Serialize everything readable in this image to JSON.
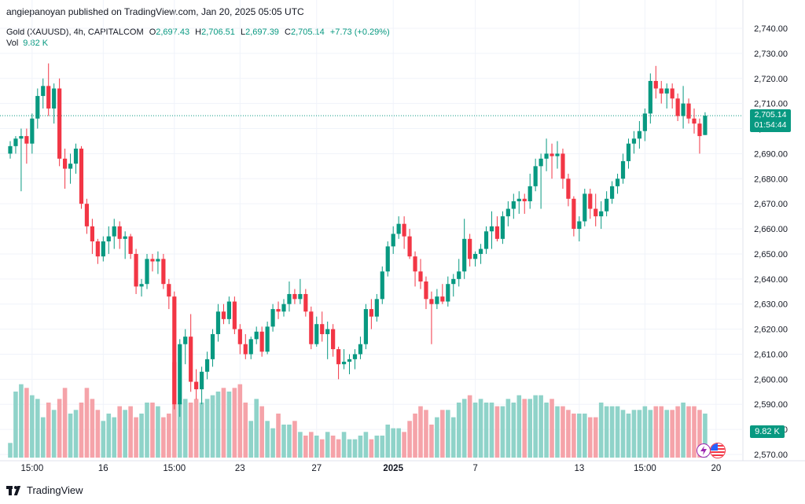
{
  "header": {
    "published": "angiepanoyan published on TradingView.com, Jan 20, 2025 05:05 UTC"
  },
  "legend": {
    "symbol": "Gold (XAUUSD), 4h, CAPITALCOM",
    "o_label": "O",
    "o_value": "2,697.43",
    "h_label": "H",
    "h_value": "2,706.51",
    "l_label": "L",
    "l_value": "2,697.39",
    "c_label": "C",
    "c_value": "2,705.14",
    "change": "+7.73 (+0.29%)",
    "vol_label": "Vol",
    "vol_value": "9.82 K"
  },
  "price_tag": {
    "price": "2,705.14",
    "countdown": "01:54:44"
  },
  "vol_tag": "9.82 K",
  "footer": {
    "brand": "TradingView"
  },
  "colors": {
    "up": "#089981",
    "down": "#f23645",
    "vol_up": "#8fd3c9",
    "vol_down": "#f5a3a9",
    "grid": "#f0f3fa"
  },
  "chart_data": {
    "type": "candlestick",
    "title": "Gold (XAUUSD), 4h, CAPITALCOM",
    "ylim": [
      2565,
      2745
    ],
    "y_ticks": [
      "2,740.00",
      "2,730.00",
      "2,720.00",
      "2,710.00",
      "2,700.00",
      "2,690.00",
      "2,680.00",
      "2,670.00",
      "2,660.00",
      "2,650.00",
      "2,640.00",
      "2,630.00",
      "2,620.00",
      "2,610.00",
      "2,600.00",
      "2,590.00",
      "2,580.00",
      "2,570.00"
    ],
    "x_ticks": [
      {
        "label": "15:00",
        "index": 4
      },
      {
        "label": "16",
        "index": 17
      },
      {
        "label": "15:00",
        "index": 30
      },
      {
        "label": "23",
        "index": 42
      },
      {
        "label": "27",
        "index": 56
      },
      {
        "label": "2025",
        "index": 70
      },
      {
        "label": "7",
        "index": 85
      },
      {
        "label": "13",
        "index": 104
      },
      {
        "label": "15:00",
        "index": 116
      },
      {
        "label": "20",
        "index": 129
      }
    ],
    "last_close": 2705.14,
    "series": [
      {
        "o": 2690,
        "h": 2695,
        "l": 2688,
        "c": 2693
      },
      {
        "o": 2693,
        "h": 2697,
        "l": 2690,
        "c": 2696
      },
      {
        "o": 2696,
        "h": 2700,
        "l": 2675,
        "c": 2697
      },
      {
        "o": 2697,
        "h": 2700,
        "l": 2686,
        "c": 2694
      },
      {
        "o": 2694,
        "h": 2706,
        "l": 2690,
        "c": 2704
      },
      {
        "o": 2704,
        "h": 2716,
        "l": 2700,
        "c": 2713
      },
      {
        "o": 2713,
        "h": 2720,
        "l": 2708,
        "c": 2717
      },
      {
        "o": 2717,
        "h": 2726,
        "l": 2705,
        "c": 2708
      },
      {
        "o": 2708,
        "h": 2718,
        "l": 2702,
        "c": 2716
      },
      {
        "o": 2716,
        "h": 2720,
        "l": 2685,
        "c": 2688
      },
      {
        "o": 2688,
        "h": 2692,
        "l": 2676,
        "c": 2684
      },
      {
        "o": 2684,
        "h": 2690,
        "l": 2678,
        "c": 2686
      },
      {
        "o": 2686,
        "h": 2694,
        "l": 2682,
        "c": 2692
      },
      {
        "o": 2692,
        "h": 2693,
        "l": 2668,
        "c": 2670
      },
      {
        "o": 2670,
        "h": 2672,
        "l": 2658,
        "c": 2661
      },
      {
        "o": 2661,
        "h": 2664,
        "l": 2650,
        "c": 2655
      },
      {
        "o": 2655,
        "h": 2656,
        "l": 2646,
        "c": 2649
      },
      {
        "o": 2649,
        "h": 2657,
        "l": 2647,
        "c": 2655
      },
      {
        "o": 2655,
        "h": 2661,
        "l": 2650,
        "c": 2657
      },
      {
        "o": 2657,
        "h": 2664,
        "l": 2652,
        "c": 2661
      },
      {
        "o": 2661,
        "h": 2663,
        "l": 2652,
        "c": 2656
      },
      {
        "o": 2656,
        "h": 2659,
        "l": 2648,
        "c": 2657
      },
      {
        "o": 2657,
        "h": 2658,
        "l": 2648,
        "c": 2650
      },
      {
        "o": 2650,
        "h": 2652,
        "l": 2634,
        "c": 2637
      },
      {
        "o": 2637,
        "h": 2640,
        "l": 2633,
        "c": 2638
      },
      {
        "o": 2638,
        "h": 2650,
        "l": 2636,
        "c": 2648
      },
      {
        "o": 2648,
        "h": 2650,
        "l": 2643,
        "c": 2647
      },
      {
        "o": 2647,
        "h": 2651,
        "l": 2642,
        "c": 2648
      },
      {
        "o": 2648,
        "h": 2650,
        "l": 2636,
        "c": 2638
      },
      {
        "o": 2638,
        "h": 2640,
        "l": 2628,
        "c": 2633
      },
      {
        "o": 2633,
        "h": 2635,
        "l": 2588,
        "c": 2590
      },
      {
        "o": 2590,
        "h": 2616,
        "l": 2585,
        "c": 2614
      },
      {
        "o": 2614,
        "h": 2620,
        "l": 2606,
        "c": 2617
      },
      {
        "o": 2617,
        "h": 2626,
        "l": 2595,
        "c": 2599
      },
      {
        "o": 2599,
        "h": 2604,
        "l": 2592,
        "c": 2596
      },
      {
        "o": 2596,
        "h": 2605,
        "l": 2590,
        "c": 2603
      },
      {
        "o": 2603,
        "h": 2611,
        "l": 2600,
        "c": 2608
      },
      {
        "o": 2608,
        "h": 2620,
        "l": 2605,
        "c": 2618
      },
      {
        "o": 2618,
        "h": 2630,
        "l": 2615,
        "c": 2627
      },
      {
        "o": 2627,
        "h": 2630,
        "l": 2622,
        "c": 2624
      },
      {
        "o": 2624,
        "h": 2633,
        "l": 2622,
        "c": 2631
      },
      {
        "o": 2631,
        "h": 2633,
        "l": 2618,
        "c": 2620
      },
      {
        "o": 2620,
        "h": 2622,
        "l": 2610,
        "c": 2614
      },
      {
        "o": 2614,
        "h": 2618,
        "l": 2608,
        "c": 2610
      },
      {
        "o": 2610,
        "h": 2617,
        "l": 2608,
        "c": 2616
      },
      {
        "o": 2616,
        "h": 2621,
        "l": 2614,
        "c": 2619
      },
      {
        "o": 2619,
        "h": 2621,
        "l": 2609,
        "c": 2611
      },
      {
        "o": 2611,
        "h": 2623,
        "l": 2610,
        "c": 2621
      },
      {
        "o": 2621,
        "h": 2630,
        "l": 2619,
        "c": 2628
      },
      {
        "o": 2628,
        "h": 2631,
        "l": 2624,
        "c": 2627
      },
      {
        "o": 2627,
        "h": 2632,
        "l": 2625,
        "c": 2630
      },
      {
        "o": 2630,
        "h": 2639,
        "l": 2627,
        "c": 2634
      },
      {
        "o": 2634,
        "h": 2636,
        "l": 2630,
        "c": 2632
      },
      {
        "o": 2632,
        "h": 2640,
        "l": 2630,
        "c": 2634
      },
      {
        "o": 2634,
        "h": 2636,
        "l": 2625,
        "c": 2627
      },
      {
        "o": 2627,
        "h": 2629,
        "l": 2612,
        "c": 2614
      },
      {
        "o": 2614,
        "h": 2625,
        "l": 2613,
        "c": 2622
      },
      {
        "o": 2622,
        "h": 2627,
        "l": 2615,
        "c": 2618
      },
      {
        "o": 2618,
        "h": 2623,
        "l": 2608,
        "c": 2620
      },
      {
        "o": 2620,
        "h": 2622,
        "l": 2609,
        "c": 2612
      },
      {
        "o": 2612,
        "h": 2613,
        "l": 2600,
        "c": 2606
      },
      {
        "o": 2606,
        "h": 2612,
        "l": 2604,
        "c": 2607
      },
      {
        "o": 2607,
        "h": 2610,
        "l": 2602,
        "c": 2608
      },
      {
        "o": 2608,
        "h": 2612,
        "l": 2604,
        "c": 2610
      },
      {
        "o": 2610,
        "h": 2617,
        "l": 2608,
        "c": 2614
      },
      {
        "o": 2614,
        "h": 2630,
        "l": 2612,
        "c": 2628
      },
      {
        "o": 2628,
        "h": 2632,
        "l": 2620,
        "c": 2625
      },
      {
        "o": 2625,
        "h": 2634,
        "l": 2623,
        "c": 2632
      },
      {
        "o": 2632,
        "h": 2645,
        "l": 2630,
        "c": 2643
      },
      {
        "o": 2643,
        "h": 2655,
        "l": 2641,
        "c": 2653
      },
      {
        "o": 2653,
        "h": 2661,
        "l": 2650,
        "c": 2658
      },
      {
        "o": 2658,
        "h": 2665,
        "l": 2656,
        "c": 2662
      },
      {
        "o": 2662,
        "h": 2665,
        "l": 2652,
        "c": 2657
      },
      {
        "o": 2657,
        "h": 2660,
        "l": 2648,
        "c": 2649
      },
      {
        "o": 2649,
        "h": 2651,
        "l": 2637,
        "c": 2643
      },
      {
        "o": 2643,
        "h": 2648,
        "l": 2636,
        "c": 2639
      },
      {
        "o": 2639,
        "h": 2641,
        "l": 2628,
        "c": 2632
      },
      {
        "o": 2632,
        "h": 2635,
        "l": 2614,
        "c": 2630
      },
      {
        "o": 2630,
        "h": 2636,
        "l": 2628,
        "c": 2633
      },
      {
        "o": 2633,
        "h": 2638,
        "l": 2630,
        "c": 2631
      },
      {
        "o": 2631,
        "h": 2641,
        "l": 2629,
        "c": 2638
      },
      {
        "o": 2638,
        "h": 2642,
        "l": 2633,
        "c": 2640
      },
      {
        "o": 2640,
        "h": 2648,
        "l": 2637,
        "c": 2643
      },
      {
        "o": 2643,
        "h": 2664,
        "l": 2640,
        "c": 2656
      },
      {
        "o": 2656,
        "h": 2658,
        "l": 2645,
        "c": 2648
      },
      {
        "o": 2648,
        "h": 2651,
        "l": 2645,
        "c": 2650
      },
      {
        "o": 2650,
        "h": 2654,
        "l": 2646,
        "c": 2652
      },
      {
        "o": 2652,
        "h": 2661,
        "l": 2650,
        "c": 2659
      },
      {
        "o": 2659,
        "h": 2667,
        "l": 2652,
        "c": 2661
      },
      {
        "o": 2661,
        "h": 2665,
        "l": 2655,
        "c": 2656
      },
      {
        "o": 2656,
        "h": 2667,
        "l": 2654,
        "c": 2665
      },
      {
        "o": 2665,
        "h": 2671,
        "l": 2661,
        "c": 2668
      },
      {
        "o": 2668,
        "h": 2674,
        "l": 2664,
        "c": 2671
      },
      {
        "o": 2671,
        "h": 2675,
        "l": 2666,
        "c": 2672
      },
      {
        "o": 2672,
        "h": 2674,
        "l": 2666,
        "c": 2671
      },
      {
        "o": 2671,
        "h": 2682,
        "l": 2668,
        "c": 2677
      },
      {
        "o": 2677,
        "h": 2688,
        "l": 2675,
        "c": 2685
      },
      {
        "o": 2685,
        "h": 2690,
        "l": 2668,
        "c": 2688
      },
      {
        "o": 2688,
        "h": 2696,
        "l": 2683,
        "c": 2690
      },
      {
        "o": 2690,
        "h": 2694,
        "l": 2680,
        "c": 2689
      },
      {
        "o": 2689,
        "h": 2695,
        "l": 2684,
        "c": 2690
      },
      {
        "o": 2690,
        "h": 2692,
        "l": 2676,
        "c": 2680
      },
      {
        "o": 2680,
        "h": 2682,
        "l": 2669,
        "c": 2672
      },
      {
        "o": 2672,
        "h": 2673,
        "l": 2657,
        "c": 2660
      },
      {
        "o": 2660,
        "h": 2665,
        "l": 2655,
        "c": 2663
      },
      {
        "o": 2663,
        "h": 2676,
        "l": 2661,
        "c": 2674
      },
      {
        "o": 2674,
        "h": 2676,
        "l": 2664,
        "c": 2668
      },
      {
        "o": 2668,
        "h": 2674,
        "l": 2661,
        "c": 2665
      },
      {
        "o": 2665,
        "h": 2671,
        "l": 2660,
        "c": 2667
      },
      {
        "o": 2667,
        "h": 2675,
        "l": 2665,
        "c": 2672
      },
      {
        "o": 2672,
        "h": 2679,
        "l": 2670,
        "c": 2677
      },
      {
        "o": 2677,
        "h": 2682,
        "l": 2674,
        "c": 2680
      },
      {
        "o": 2680,
        "h": 2690,
        "l": 2678,
        "c": 2687
      },
      {
        "o": 2687,
        "h": 2696,
        "l": 2684,
        "c": 2694
      },
      {
        "o": 2694,
        "h": 2699,
        "l": 2690,
        "c": 2696
      },
      {
        "o": 2696,
        "h": 2703,
        "l": 2692,
        "c": 2699
      },
      {
        "o": 2699,
        "h": 2708,
        "l": 2695,
        "c": 2706
      },
      {
        "o": 2706,
        "h": 2722,
        "l": 2702,
        "c": 2719
      },
      {
        "o": 2719,
        "h": 2725,
        "l": 2712,
        "c": 2716
      },
      {
        "o": 2716,
        "h": 2719,
        "l": 2710,
        "c": 2714
      },
      {
        "o": 2714,
        "h": 2718,
        "l": 2708,
        "c": 2716
      },
      {
        "o": 2716,
        "h": 2718,
        "l": 2708,
        "c": 2712
      },
      {
        "o": 2712,
        "h": 2714,
        "l": 2703,
        "c": 2705
      },
      {
        "o": 2705,
        "h": 2717,
        "l": 2700,
        "c": 2710
      },
      {
        "o": 2710,
        "h": 2712,
        "l": 2702,
        "c": 2704
      },
      {
        "o": 2704,
        "h": 2708,
        "l": 2698,
        "c": 2702
      },
      {
        "o": 2702,
        "h": 2704,
        "l": 2690,
        "c": 2697
      },
      {
        "o": 2697.43,
        "h": 2706.51,
        "l": 2697.39,
        "c": 2705.14
      }
    ],
    "volume": {
      "max": 30,
      "values": [
        4,
        18,
        20,
        19,
        17,
        16,
        11,
        15,
        13,
        16,
        19,
        12,
        13,
        15,
        19,
        16,
        13,
        10,
        12,
        11,
        14,
        13,
        14,
        11,
        12,
        15,
        15,
        14,
        11,
        12,
        26,
        15,
        16,
        15,
        16,
        15,
        16,
        17,
        18,
        19,
        18,
        19,
        20,
        15,
        10,
        16,
        14,
        10,
        8,
        12,
        9,
        9,
        10,
        7,
        6,
        7,
        6,
        5,
        7,
        6,
        5,
        7,
        5,
        5,
        6,
        7,
        5,
        6,
        6,
        9,
        8,
        8,
        7,
        10,
        12,
        14,
        13,
        9,
        11,
        13,
        13,
        11,
        15,
        16,
        17,
        15,
        16,
        15,
        15,
        14,
        14,
        16,
        15,
        17,
        16,
        16,
        17,
        17,
        15,
        16,
        14,
        14,
        13,
        12,
        12,
        12,
        11,
        11,
        15,
        14,
        14,
        14,
        13,
        12,
        13,
        13,
        14,
        13,
        14,
        14,
        13,
        13,
        14,
        15,
        14,
        14,
        13,
        12,
        11,
        12
      ]
    }
  }
}
